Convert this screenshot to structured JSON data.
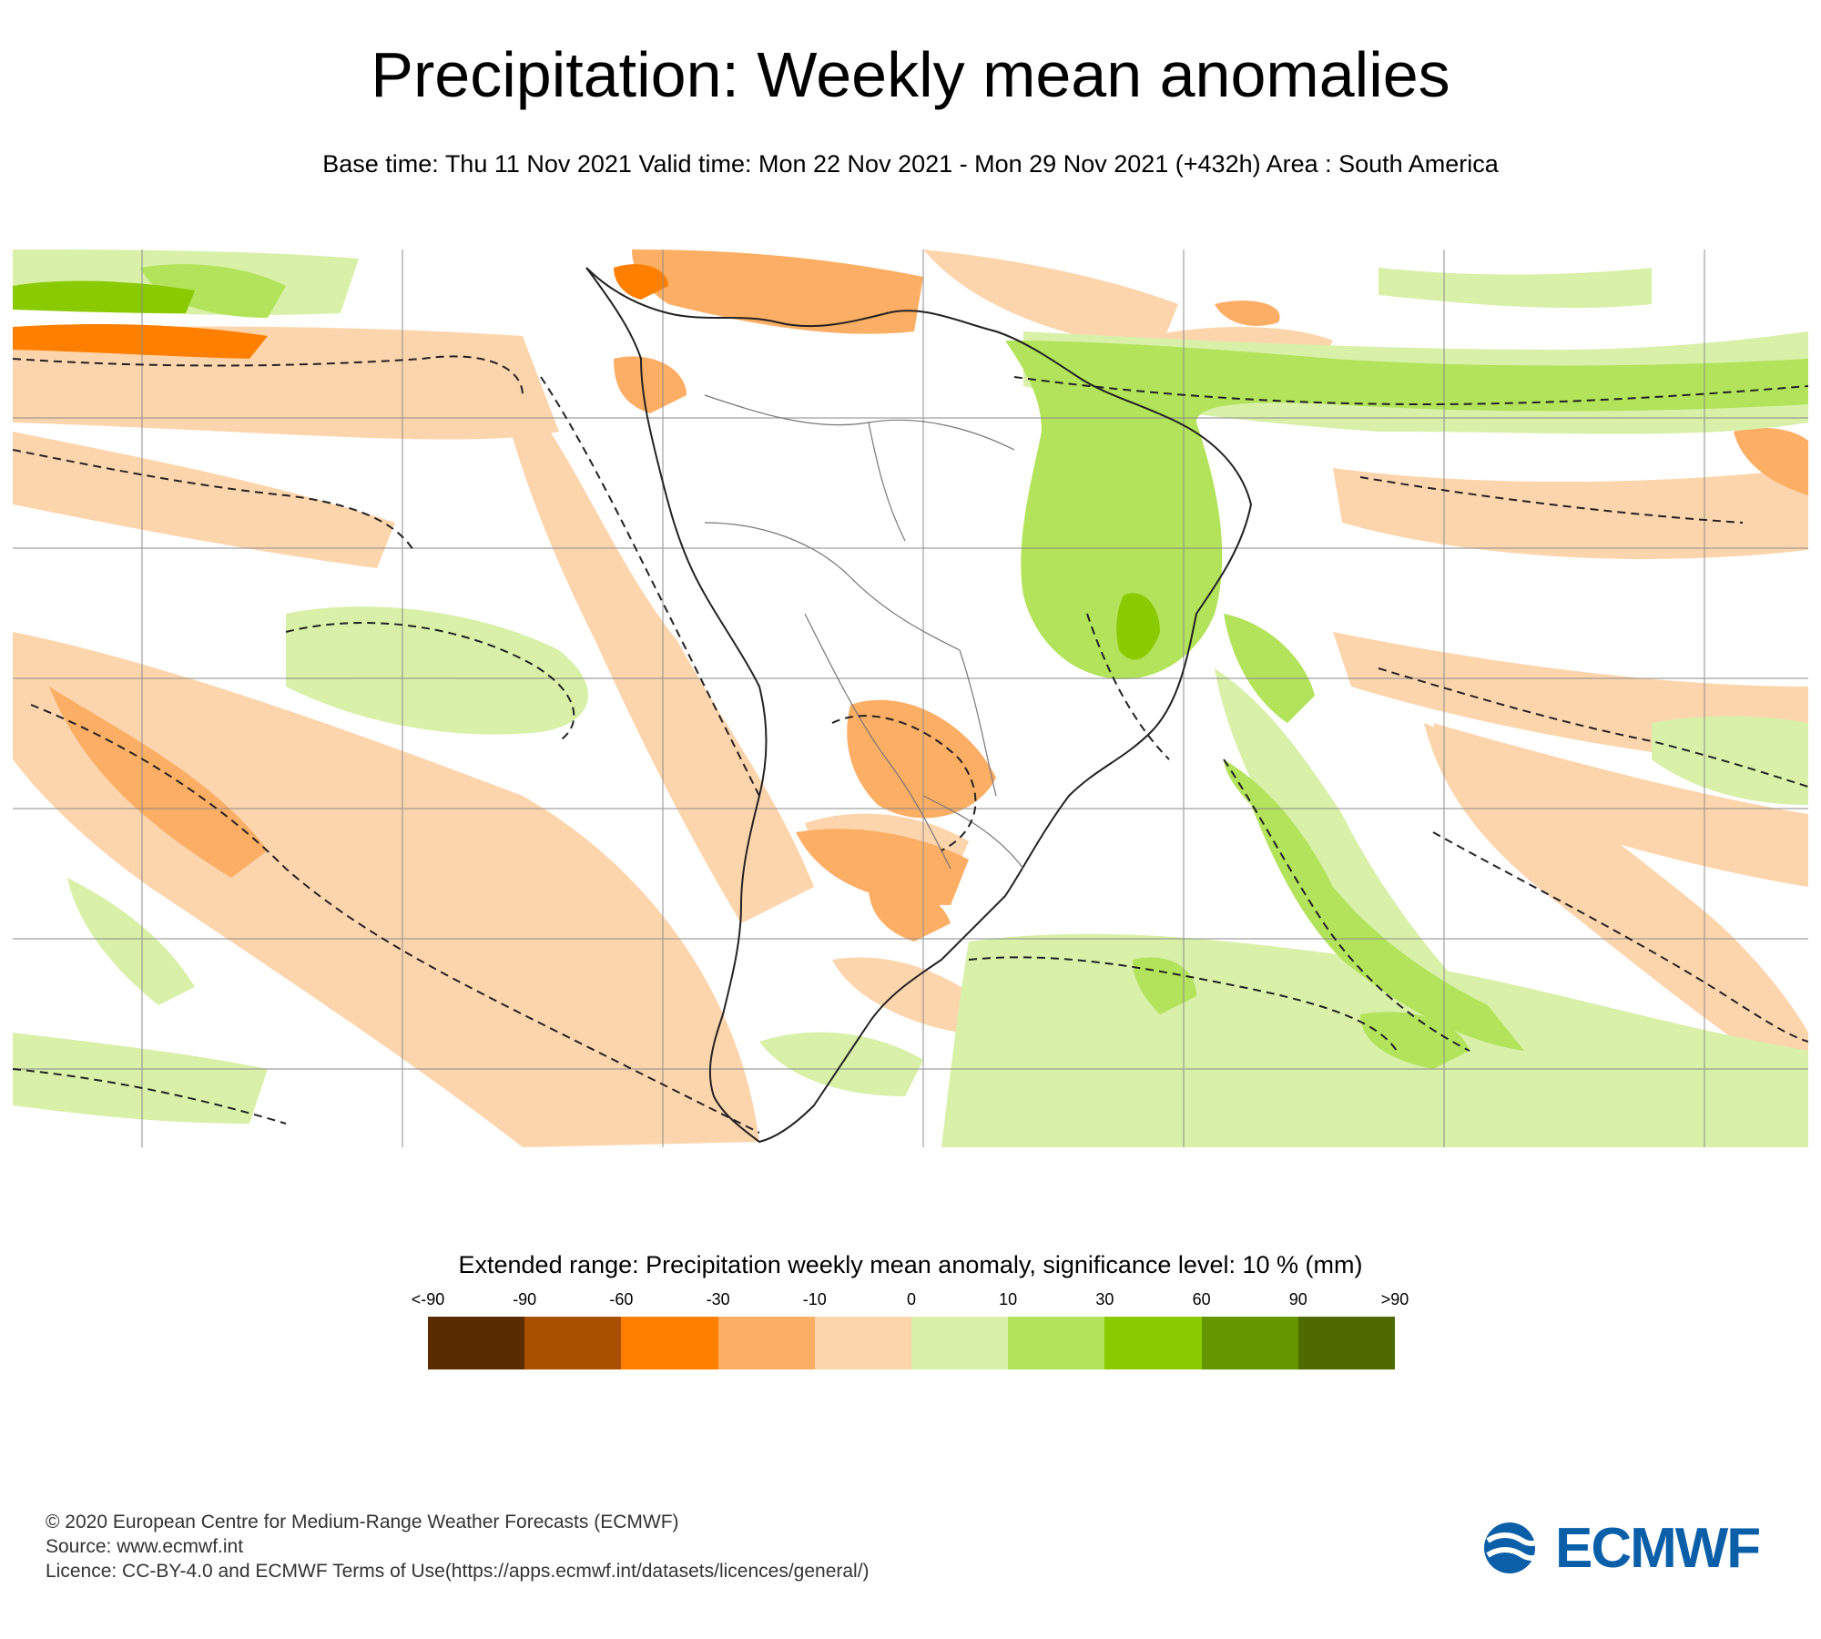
{
  "header": {
    "title": "Precipitation: Weekly mean anomalies",
    "subtitle": "Base time: Thu 11 Nov 2021 Valid time: Mon 22 Nov 2021 - Mon 29 Nov 2021 (+432h) Area : South America"
  },
  "map": {
    "region": "South America"
  },
  "legend": {
    "title": "Extended range: Precipitation weekly mean anomaly, significance level: 10 % (mm)",
    "labels": [
      "<-90",
      "-90",
      "-60",
      "-30",
      "-10",
      "0",
      "10",
      "30",
      "60",
      "90",
      ">90"
    ],
    "colors": [
      "#5a2d00",
      "#a85000",
      "#ff7f00",
      "#fbae64",
      "#fdd5ad",
      "#d8f0a8",
      "#b2e35a",
      "#8aca00",
      "#659600",
      "#4f6b00"
    ]
  },
  "footer": {
    "copyright": "© 2020 European Centre for Medium-Range Weather Forecasts (ECMWF)",
    "source": "Source: www.ecmwf.int",
    "licence": "Licence: CC-BY-4.0 and ECMWF Terms of Use(https://apps.ecmwf.int/datasets/licences/general/)"
  },
  "logo": {
    "text": "ECMWF",
    "color": "#0a5fa8"
  }
}
